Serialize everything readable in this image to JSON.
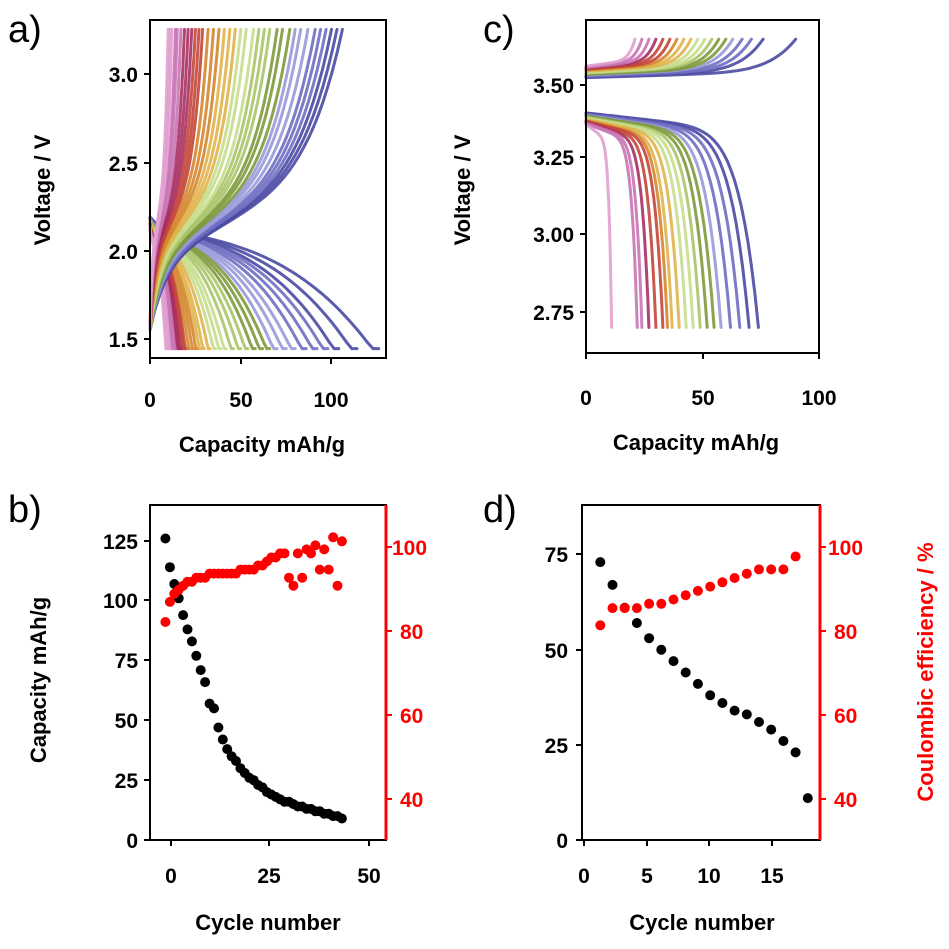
{
  "colors": {
    "black_series": "#000000",
    "red_series": "#ff0000",
    "red_axis": "#ff0000",
    "curve_palette": [
      "#4a4aa3",
      "#6e6ec2",
      "#9999d9",
      "#7d9a3c",
      "#a9c56a",
      "#c6dd8c",
      "#e0b34a",
      "#d4862e",
      "#c4463a",
      "#a83060",
      "#c974b5",
      "#e0a0cf"
    ]
  },
  "chart_data": [
    {
      "panel": "a)",
      "type": "line",
      "xlabel": "Capacity mAh/g",
      "ylabel": "Voltage / V",
      "xlim": [
        0,
        130
      ],
      "ylim": [
        1.45,
        3.25
      ],
      "xticks": [
        "0",
        "50",
        "100"
      ],
      "yticks": [
        "1.5",
        "2.0",
        "2.5",
        "3.0"
      ],
      "grid": false,
      "curve_sets": {
        "charge_end_capacity": [
          106,
          103,
          100,
          97,
          94,
          91,
          87,
          83,
          80,
          77,
          73,
          70,
          66,
          63,
          60,
          57,
          53,
          50,
          47,
          44,
          41,
          38,
          35,
          32,
          29,
          27,
          25,
          23,
          21,
          19,
          17,
          15,
          14,
          12,
          11,
          10
        ],
        "discharge_end_capacity": [
          126,
          114,
          104,
          98,
          92,
          86,
          80,
          75,
          70,
          66,
          62,
          58,
          54,
          50,
          46,
          42,
          39,
          36,
          33,
          30,
          28,
          26,
          24,
          22,
          20,
          19,
          18,
          17,
          16,
          15,
          14,
          13,
          12,
          11,
          10,
          9
        ],
        "charge_voltage_range": [
          1.6,
          3.2
        ],
        "discharge_voltage_range": [
          2.2,
          1.5
        ]
      }
    },
    {
      "panel": "b)",
      "type": "scatter",
      "xlabel": "Cycle number",
      "ylabel": "Capacity mAh/g",
      "ylabel_right": "",
      "xlim": [
        -2.5,
        51
      ],
      "ylim": [
        0,
        140
      ],
      "ylim_right": [
        30,
        113
      ],
      "xticks": [
        "0",
        "25",
        "50"
      ],
      "yticks": [
        "0",
        "25",
        "50",
        "75",
        "100",
        "125"
      ],
      "yticks_right": [
        "40",
        "60",
        "80",
        "100"
      ],
      "series": [
        {
          "axis": "left",
          "x": [
            1,
            2,
            3,
            4,
            5,
            6,
            7,
            8,
            9,
            10,
            11,
            12,
            13,
            14,
            15,
            16,
            17,
            18,
            19,
            20,
            21,
            22,
            23,
            24,
            25,
            26,
            27,
            28,
            29,
            30,
            31,
            32,
            33,
            34,
            35,
            36,
            37,
            38,
            39,
            40,
            41
          ],
          "values": [
            126,
            114,
            107,
            101,
            94,
            88,
            83,
            77,
            71,
            66,
            57,
            55,
            47,
            42,
            38,
            35,
            33,
            30,
            28,
            26,
            25,
            23,
            22,
            20,
            19,
            18,
            17,
            16,
            16,
            15,
            14,
            14,
            13,
            13,
            12,
            12,
            11,
            11,
            10,
            10,
            9
          ]
        },
        {
          "axis": "right",
          "x": [
            1,
            2,
            3,
            4,
            5,
            6,
            7,
            8,
            9,
            10,
            11,
            12,
            13,
            14,
            15,
            16,
            17,
            18,
            19,
            20,
            21,
            22,
            23,
            24,
            25,
            26,
            27,
            28,
            29,
            30,
            31,
            32,
            33,
            34,
            35,
            36,
            37,
            38,
            39,
            40,
            41
          ],
          "values": [
            84,
            89,
            91,
            92,
            93,
            94,
            94,
            95,
            95,
            95,
            96,
            96,
            96,
            96,
            96,
            96,
            96,
            97,
            97,
            97,
            97,
            98,
            98,
            99,
            100,
            100,
            101,
            101,
            95,
            93,
            101,
            95,
            102,
            101,
            103,
            97,
            102,
            97,
            105,
            93,
            104
          ]
        }
      ]
    },
    {
      "panel": "c)",
      "type": "line",
      "xlabel": "Capacity mAh/g",
      "ylabel": "Voltage / V",
      "xlim": [
        0,
        100
      ],
      "ylim": [
        2.62,
        3.66
      ],
      "xticks": [
        "0",
        "50",
        "100"
      ],
      "yticks": [
        "2.75",
        "3.00",
        "3.25",
        "3.50"
      ],
      "grid": false,
      "curve_sets": {
        "charge_end_capacity": [
          90,
          76,
          71,
          67,
          63,
          60,
          57,
          54,
          51,
          48,
          45,
          42,
          39,
          36,
          33,
          30,
          27,
          24,
          21
        ],
        "discharge_end_capacity": [
          74,
          70,
          66,
          62,
          58,
          55,
          52,
          49,
          46,
          43,
          40,
          37,
          35,
          33,
          30,
          27,
          24,
          22,
          11
        ],
        "charge_voltage_range": [
          3.48,
          3.6
        ],
        "discharge_voltage_range": [
          3.37,
          2.7
        ]
      }
    },
    {
      "panel": "d)",
      "type": "scatter",
      "xlabel": "Cycle number",
      "ylabel": "",
      "ylabel_right": "Coulombic efficiency / %",
      "xlim": [
        -0.5,
        19
      ],
      "ylim": [
        0,
        88
      ],
      "ylim_right": [
        32,
        110
      ],
      "xticks": [
        "0",
        "5",
        "10",
        "15"
      ],
      "yticks": [
        "0",
        "25",
        "50",
        "75"
      ],
      "yticks_right": [
        "40",
        "60",
        "80",
        "100"
      ],
      "series": [
        {
          "axis": "left",
          "x": [
            1,
            2,
            3,
            4,
            5,
            6,
            7,
            8,
            9,
            10,
            11,
            12,
            13,
            14,
            15,
            16,
            17,
            18
          ],
          "values": [
            73,
            67,
            61,
            57,
            53,
            50,
            47,
            44,
            41,
            38,
            36,
            34,
            33,
            31,
            29,
            26,
            23,
            11
          ]
        },
        {
          "axis": "right",
          "x": [
            1,
            2,
            3,
            4,
            5,
            6,
            7,
            8,
            9,
            10,
            11,
            12,
            13,
            14,
            15,
            16,
            17
          ],
          "values": [
            82,
            86,
            86,
            86,
            87,
            87,
            88,
            89,
            90,
            91,
            92,
            93,
            94,
            95,
            95,
            95,
            98
          ]
        }
      ]
    }
  ]
}
